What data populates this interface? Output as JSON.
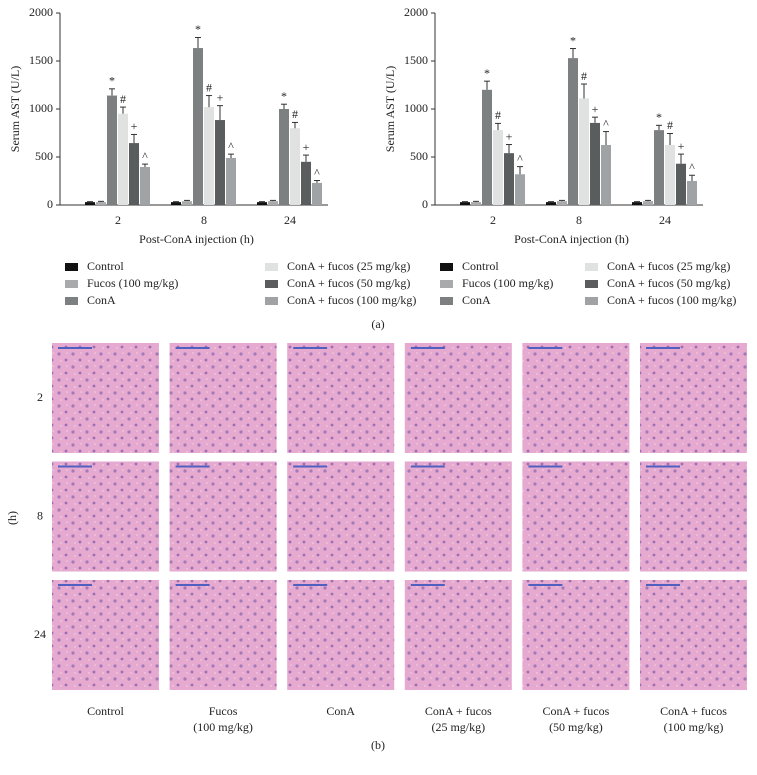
{
  "chart_data": [
    {
      "type": "bar",
      "y_label": "Serum AST (U/L)",
      "x_label": "Post-ConA injection (h)",
      "categories": [
        "2",
        "8",
        "24"
      ],
      "ylim": [
        0,
        2000
      ],
      "yticks": [
        0,
        500,
        1000,
        1500,
        2000
      ],
      "series": [
        {
          "name": "Control",
          "color": "#111111",
          "values": [
            30,
            30,
            30
          ],
          "errors": [
            5,
            5,
            5
          ]
        },
        {
          "name": "Fucos (100 mg/kg)",
          "color": "#a8aaab",
          "values": [
            30,
            40,
            40
          ],
          "errors": [
            8,
            8,
            8
          ]
        },
        {
          "name": "ConA",
          "color": "#7d8081",
          "values": [
            1140,
            1635,
            1000
          ],
          "errors": [
            70,
            110,
            50
          ],
          "annotation": "*"
        },
        {
          "name": "ConA + fucos (25 mg/kg)",
          "color": "#dfe2e0",
          "values": [
            950,
            1020,
            800
          ],
          "errors": [
            70,
            120,
            60
          ],
          "annotation": "#"
        },
        {
          "name": "ConA + fucos (50 mg/kg)",
          "color": "#5a5d5e",
          "values": [
            645,
            885,
            450
          ],
          "errors": [
            90,
            150,
            70
          ],
          "annotation": "+"
        },
        {
          "name": "ConA + fucos (100 mg/kg)",
          "color": "#9fa3a5",
          "values": [
            396,
            490,
            230
          ],
          "errors": [
            30,
            40,
            25
          ],
          "annotation": "^"
        }
      ]
    },
    {
      "type": "bar",
      "y_label": "Serum AST (U/L)",
      "x_label": "Post-ConA injection (h)",
      "categories": [
        "2",
        "8",
        "24"
      ],
      "ylim": [
        0,
        2000
      ],
      "yticks": [
        0,
        500,
        1000,
        1500,
        2000
      ],
      "series": [
        {
          "name": "Control",
          "color": "#111111",
          "values": [
            30,
            30,
            30
          ],
          "errors": [
            5,
            5,
            5
          ]
        },
        {
          "name": "Fucos (100 mg/kg)",
          "color": "#a8aaab",
          "values": [
            30,
            40,
            40
          ],
          "errors": [
            8,
            8,
            8
          ]
        },
        {
          "name": "ConA",
          "color": "#7d8081",
          "values": [
            1200,
            1530,
            780
          ],
          "errors": [
            90,
            100,
            50
          ],
          "annotation": "*"
        },
        {
          "name": "ConA + fucos (25 mg/kg)",
          "color": "#dfe2e0",
          "values": [
            780,
            1110,
            625
          ],
          "errors": [
            70,
            150,
            120
          ],
          "annotation": "#"
        },
        {
          "name": "ConA + fucos (50 mg/kg)",
          "color": "#5a5d5e",
          "values": [
            540,
            855,
            430
          ],
          "errors": [
            90,
            60,
            100
          ],
          "annotation": "+"
        },
        {
          "name": "ConA + fucos (100 mg/kg)",
          "color": "#9fa3a5",
          "values": [
            320,
            625,
            250
          ],
          "errors": [
            80,
            140,
            60
          ],
          "annotation": "^"
        }
      ]
    }
  ],
  "figure": {
    "panel_a": "(a)",
    "panel_b": "(b)",
    "row_axis": "(h)",
    "rows": [
      "2",
      "8",
      "24"
    ],
    "columns": [
      [
        "Control"
      ],
      [
        "Fucos",
        "(100 mg/kg)"
      ],
      [
        "ConA"
      ],
      [
        "ConA + fucos",
        "(25 mg/kg)"
      ],
      [
        "ConA + fucos",
        "(50 mg/kg)"
      ],
      [
        "ConA + fucos",
        "(100 mg/kg)"
      ]
    ]
  }
}
